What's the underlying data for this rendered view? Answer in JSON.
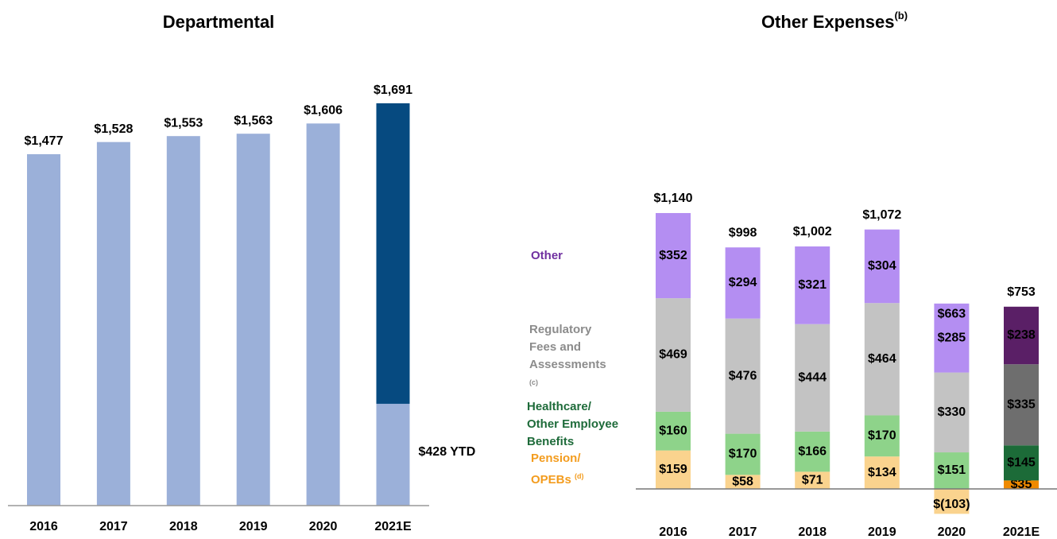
{
  "chart_data": [
    {
      "type": "bar",
      "title": "Departmental",
      "categories": [
        "2016",
        "2017",
        "2018",
        "2019",
        "2020",
        "2021E"
      ],
      "values": [
        1477,
        1528,
        1553,
        1563,
        1606,
        1691
      ],
      "value_labels": [
        "$1,477",
        "$1,528",
        "$1,553",
        "$1,563",
        "$1,606",
        "$1,691"
      ],
      "colors": [
        "#9bb0d9",
        "#9bb0d9",
        "#9bb0d9",
        "#9bb0d9",
        "#9bb0d9",
        "#064a80"
      ],
      "ytd": {
        "value": 428,
        "label": "$428 YTD",
        "color": "#9bb0d9"
      },
      "ylim": [
        0,
        1800
      ]
    },
    {
      "type": "stacked_bar",
      "title": "Other Expenses",
      "title_note": "(b)",
      "categories": [
        "2016",
        "2017",
        "2018",
        "2019",
        "2020",
        "2021E"
      ],
      "series": [
        {
          "name": "Pension/ OPEBs",
          "note": "(d)",
          "legend_color": "#f39c1e",
          "colors": [
            "#fad38e",
            "#fad38e",
            "#fad38e",
            "#fad38e",
            "#fad38e",
            "#f08a00"
          ],
          "text_colors": [
            "#000",
            "#000",
            "#000",
            "#000",
            "#000",
            "#000"
          ],
          "values": [
            159,
            58,
            71,
            134,
            -103,
            35
          ],
          "value_labels": [
            "$159",
            "$58",
            "$71",
            "$134",
            "$(103)",
            "$35"
          ]
        },
        {
          "name": "Healthcare/ Other Employee Benefits",
          "legend_color": "#1e6b3a",
          "colors": [
            "#8ed38a",
            "#8ed38a",
            "#8ed38a",
            "#8ed38a",
            "#8ed38a",
            "#1c6b38"
          ],
          "text_colors": [
            "#000",
            "#000",
            "#000",
            "#000",
            "#000",
            "#fff"
          ],
          "values": [
            160,
            170,
            166,
            170,
            151,
            145
          ],
          "value_labels": [
            "$160",
            "$170",
            "$166",
            "$170",
            "$151",
            "$145"
          ]
        },
        {
          "name": "Regulatory Fees and Assessments",
          "note": "(c)",
          "legend_color": "#8c8c8c",
          "colors": [
            "#c3c3c3",
            "#c3c3c3",
            "#c3c3c3",
            "#c3c3c3",
            "#c3c3c3",
            "#6e6e6e"
          ],
          "text_colors": [
            "#000",
            "#000",
            "#000",
            "#000",
            "#000",
            "#fff"
          ],
          "values": [
            469,
            476,
            444,
            464,
            330,
            335
          ],
          "value_labels": [
            "$469",
            "$476",
            "$444",
            "$464",
            "$330",
            "$335"
          ]
        },
        {
          "name": "Other",
          "legend_color": "#7030a0",
          "colors": [
            "#b48ef2",
            "#b48ef2",
            "#b48ef2",
            "#b48ef2",
            "#b48ef2",
            "#5a1f66"
          ],
          "text_colors": [
            "#000",
            "#000",
            "#000",
            "#000",
            "#000",
            "#fff"
          ],
          "values": [
            352,
            294,
            321,
            304,
            285,
            238
          ],
          "value_labels": [
            "$352",
            "$294",
            "$321",
            "$304",
            "$285",
            "$238"
          ]
        }
      ],
      "totals": [
        1140,
        998,
        1002,
        1072,
        663,
        753
      ],
      "total_labels": [
        "$1,140",
        "$998",
        "$1,002",
        "$1,072",
        "$663",
        "$753"
      ],
      "ylim": [
        -200,
        1400
      ]
    }
  ]
}
